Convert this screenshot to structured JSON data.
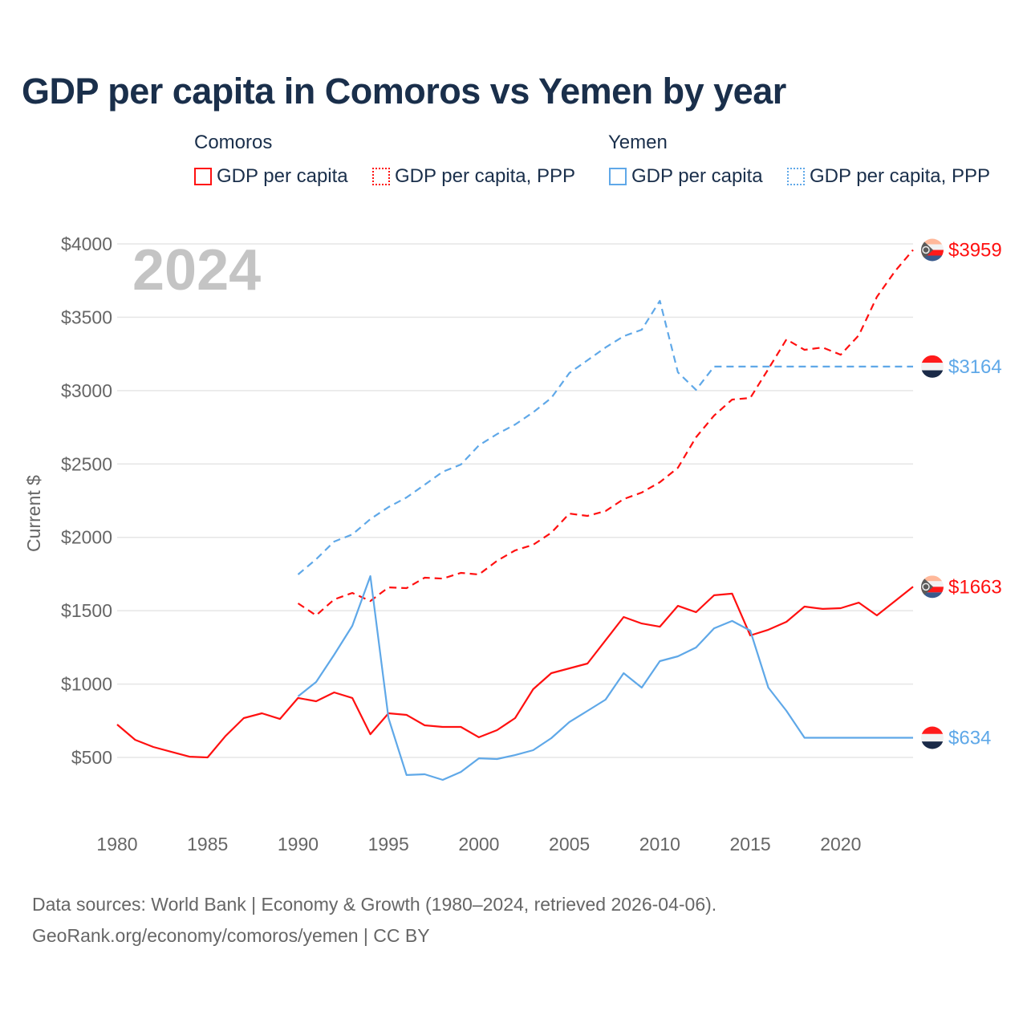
{
  "title": "GDP per capita in Comoros vs Yemen by year",
  "year_watermark": "2024",
  "legend": {
    "groups": [
      {
        "name": "Comoros",
        "items": [
          "GDP per capita",
          "GDP per capita, PPP"
        ]
      },
      {
        "name": "Yemen",
        "items": [
          "GDP per capita",
          "GDP per capita, PPP"
        ]
      }
    ]
  },
  "source_lines": [
    "Data sources: World Bank | Economy & Growth (1980–2024, retrieved 2026-04-06).",
    "GeoRank.org/economy/comoros/yemen | CC BY"
  ],
  "colors": {
    "comoros": "#ff1010",
    "yemen": "#5fa8e8",
    "text": "#1a2f4b",
    "grid": "#e6e6e6"
  },
  "chart_data": {
    "type": "line",
    "title": "GDP per capita in Comoros vs Yemen by year",
    "xlabel": "",
    "ylabel": "Current $",
    "xlim": [
      1980,
      2024
    ],
    "ylim": [
      0,
      4000
    ],
    "yticks": [
      500,
      1000,
      1500,
      2000,
      2500,
      3000,
      3500,
      4000
    ],
    "ytick_labels": [
      "$500",
      "$1000",
      "$1500",
      "$2000",
      "$2500",
      "$3000",
      "$3500",
      "$4000"
    ],
    "xticks": [
      1980,
      1985,
      1990,
      1995,
      2000,
      2005,
      2010,
      2015,
      2020
    ],
    "xtick_labels": [
      "1980",
      "1985",
      "1990",
      "1995",
      "2000",
      "2005",
      "2010",
      "2015",
      "2020"
    ],
    "grid": true,
    "legend_position": "top",
    "series": [
      {
        "name": "Comoros GDP per capita",
        "country": "Comoros",
        "style": "solid",
        "color": "#ff1010",
        "start": 1980,
        "end_label": "$1663",
        "values": [
          724,
          620,
          571,
          538,
          505,
          500,
          647,
          768,
          801,
          762,
          905,
          883,
          943,
          905,
          658,
          801,
          790,
          719,
          708,
          708,
          637,
          686,
          768,
          965,
          1074,
          1107,
          1140,
          1298,
          1457,
          1413,
          1391,
          1533,
          1490,
          1605,
          1616,
          1331,
          1370,
          1424,
          1528,
          1512,
          1517,
          1555,
          1468,
          1566,
          1663
        ]
      },
      {
        "name": "Comoros GDP per capita, PPP",
        "country": "Comoros",
        "style": "dashed",
        "color": "#ff1010",
        "start": 1990,
        "end_label": "$3959",
        "values": [
          1550,
          1468,
          1577,
          1621,
          1566,
          1659,
          1654,
          1725,
          1719,
          1758,
          1747,
          1840,
          1911,
          1949,
          2031,
          2162,
          2146,
          2179,
          2261,
          2305,
          2376,
          2474,
          2682,
          2830,
          2939,
          2950,
          3147,
          3349,
          3278,
          3294,
          3245,
          3377,
          3639,
          3814,
          3959
        ]
      },
      {
        "name": "Yemen GDP per capita",
        "country": "Yemen",
        "style": "solid",
        "color": "#5fa8e8",
        "start": 1990,
        "end_label": "$634",
        "values": [
          916,
          1014,
          1200,
          1397,
          1736,
          768,
          380,
          385,
          347,
          401,
          494,
          489,
          516,
          549,
          631,
          741,
          817,
          894,
          1074,
          976,
          1156,
          1189,
          1249,
          1380,
          1430,
          1364,
          976,
          817,
          634,
          634,
          634,
          634,
          634,
          634,
          634
        ]
      },
      {
        "name": "Yemen GDP per capita, PPP",
        "country": "Yemen",
        "style": "dashed",
        "color": "#5fa8e8",
        "start": 1990,
        "end_label": "$3164",
        "values": [
          1747,
          1851,
          1971,
          2020,
          2124,
          2206,
          2272,
          2359,
          2447,
          2496,
          2627,
          2704,
          2769,
          2852,
          2950,
          3120,
          3207,
          3294,
          3371,
          3415,
          3612,
          3125,
          3005,
          3164,
          3164,
          3164,
          3164,
          3164,
          3164,
          3164,
          3164,
          3164,
          3164,
          3164,
          3164
        ]
      }
    ]
  }
}
